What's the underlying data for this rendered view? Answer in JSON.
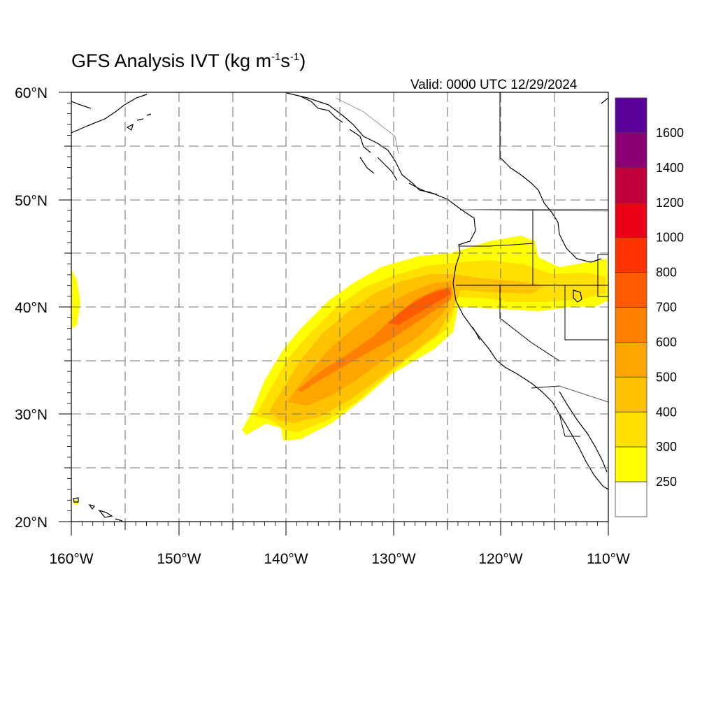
{
  "map": {
    "title_main": "GFS Analysis IVT (kg m",
    "title_exp1": "-1",
    "title_mid": "s",
    "title_exp2": "-1",
    "title_end": ")",
    "valid": "Valid: 0000 UTC 12/29/2024",
    "lat_labels": [
      "60°N",
      "50°N",
      "40°N",
      "30°N",
      "20°N"
    ],
    "lon_labels": [
      "160°W",
      "150°W",
      "140°W",
      "130°W",
      "120°W",
      "110°W"
    ],
    "extent": {
      "lon_min": -160,
      "lon_max": -110,
      "lat_min": 20,
      "lat_max": 60
    },
    "grid": "dashed every 5 degrees"
  },
  "colorbar": {
    "levels": [
      "1600",
      "1400",
      "1200",
      "1000",
      "800",
      "700",
      "600",
      "500",
      "400",
      "300",
      "250"
    ],
    "colors": [
      "#5b0098",
      "#8b0073",
      "#c2003c",
      "#eb0017",
      "#ff3300",
      "#ff5a00",
      "#ff8000",
      "#ffa500",
      "#ffc200",
      "#ffe000",
      "#ffff00",
      "#ffffff"
    ]
  },
  "colors": {
    "ivt_250": "#ffff00",
    "ivt_300": "#ffe000",
    "ivt_400": "#ffc200",
    "ivt_500": "#ffa500",
    "ivt_600": "#ff8000",
    "ivt_700": "#ff5a00"
  }
}
